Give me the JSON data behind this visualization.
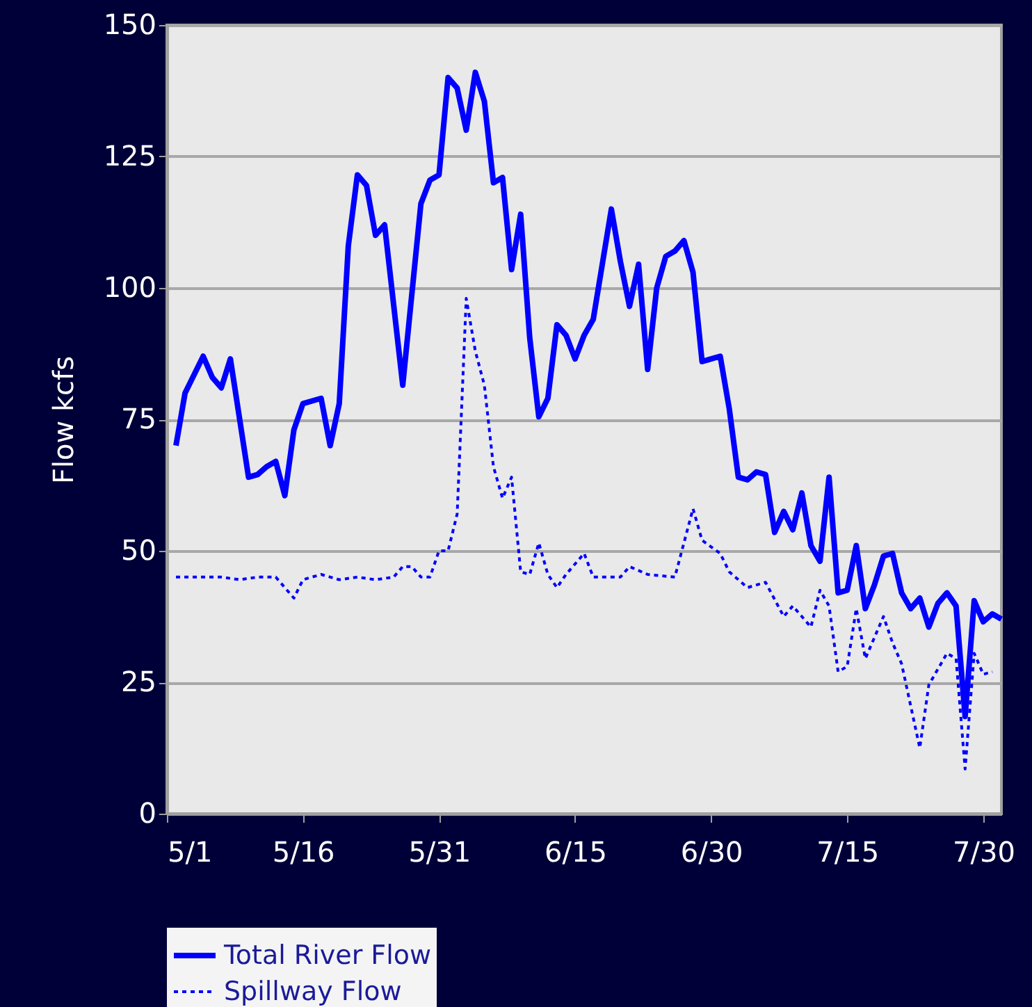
{
  "chart_data": {
    "type": "line",
    "ylabel": "Flow kcfs",
    "xlim": [
      "--05-01",
      "--08-01"
    ],
    "ylim": [
      0,
      150
    ],
    "yticks": [
      0,
      25,
      50,
      75,
      100,
      125,
      150
    ],
    "xticks": [
      {
        "value": "--05-01",
        "label": "5/1"
      },
      {
        "value": "--05-16",
        "label": "5/16"
      },
      {
        "value": "--05-31",
        "label": "5/31"
      },
      {
        "value": "--06-15",
        "label": "6/15"
      },
      {
        "value": "--06-30",
        "label": "6/30"
      },
      {
        "value": "--07-15",
        "label": "7/15"
      },
      {
        "value": "--07-30",
        "label": "7/30"
      }
    ],
    "grid": "y",
    "legend": "bottom",
    "marker": "none",
    "series": [
      {
        "name": "Total River Flow",
        "color": "#0000ff",
        "line_style": "solid",
        "x": [
          "--05-02",
          "--05-03",
          "--05-05",
          "--05-06",
          "--05-07",
          "--05-08",
          "--05-10",
          "--05-11",
          "--05-12",
          "--05-13",
          "--05-14",
          "--05-15",
          "--05-16",
          "--05-18",
          "--05-19",
          "--05-20",
          "--05-21",
          "--05-22",
          "--05-23",
          "--05-24",
          "--05-25",
          "--05-27",
          "--05-29",
          "--05-30",
          "--05-31",
          "--06-01",
          "--06-02",
          "--06-03",
          "--06-04",
          "--06-05",
          "--06-06",
          "--06-07",
          "--06-08",
          "--06-09",
          "--06-10",
          "--06-11",
          "--06-12",
          "--06-13",
          "--06-14",
          "--06-15",
          "--06-16",
          "--06-17",
          "--06-19",
          "--06-20",
          "--06-21",
          "--06-22",
          "--06-23",
          "--06-24",
          "--06-25",
          "--06-26",
          "--06-27",
          "--06-28",
          "--06-29",
          "--07-01",
          "--07-02",
          "--07-03",
          "--07-04",
          "--07-05",
          "--07-06",
          "--07-07",
          "--07-08",
          "--07-09",
          "--07-10",
          "--07-11",
          "--07-12",
          "--07-13",
          "--07-14",
          "--07-15",
          "--07-16",
          "--07-17",
          "--07-18",
          "--07-19",
          "--07-20",
          "--07-21",
          "--07-22",
          "--07-23",
          "--07-24",
          "--07-25",
          "--07-26",
          "--07-27",
          "--07-28",
          "--07-29",
          "--07-30",
          "--07-31",
          "--08-01"
        ],
        "values": [
          70,
          80,
          87,
          83,
          81,
          86.5,
          64,
          64.5,
          66,
          67,
          60.5,
          73,
          78,
          79,
          70,
          78,
          108,
          121.5,
          119.5,
          110,
          112,
          81.5,
          116,
          120.5,
          121.5,
          140,
          138,
          130,
          141,
          135.5,
          120,
          121,
          103.5,
          114,
          90.5,
          75.5,
          79,
          93,
          91,
          86.5,
          91,
          94,
          115,
          105,
          96.5,
          104.5,
          84.5,
          100,
          106,
          107,
          109,
          103,
          86,
          87,
          77,
          64,
          63.5,
          65,
          64.5,
          53.5,
          57.5,
          54,
          61,
          51,
          48,
          64,
          42,
          42.5,
          51,
          39,
          43.5,
          49,
          49.5,
          42,
          39,
          41,
          35.5,
          40,
          42,
          39.5,
          18.5,
          40.5,
          36.5,
          38,
          37
        ]
      },
      {
        "name": "Spillway Flow",
        "color": "#0000ff",
        "line_style": "dotted",
        "x": [
          "--05-02",
          "--05-03",
          "--05-05",
          "--05-07",
          "--05-09",
          "--05-11",
          "--05-13",
          "--05-14",
          "--05-15",
          "--05-16",
          "--05-18",
          "--05-20",
          "--05-22",
          "--05-24",
          "--05-26",
          "--05-27",
          "--05-28",
          "--05-29",
          "--05-30",
          "--05-31",
          "--06-01",
          "--06-02",
          "--06-03",
          "--06-04",
          "--06-05",
          "--06-06",
          "--06-07",
          "--06-08",
          "--06-09",
          "--06-10",
          "--06-11",
          "--06-12",
          "--06-13",
          "--06-14",
          "--06-16",
          "--06-17",
          "--06-20",
          "--06-21",
          "--06-23",
          "--06-26",
          "--06-27",
          "--06-28",
          "--06-29",
          "--07-01",
          "--07-02",
          "--07-04",
          "--07-06",
          "--07-08",
          "--07-09",
          "--07-11",
          "--07-12",
          "--07-13",
          "--07-14",
          "--07-15",
          "--07-16",
          "--07-17",
          "--07-19",
          "--07-20",
          "--07-21",
          "--07-23",
          "--07-24",
          "--07-26",
          "--07-27",
          "--07-28",
          "--07-29",
          "--07-30",
          "--07-31"
        ],
        "values": [
          45,
          45,
          45,
          45,
          44.5,
          45,
          45,
          43,
          41,
          44.5,
          45.5,
          44.5,
          45,
          44.5,
          45,
          47,
          47,
          45,
          45,
          50,
          50,
          57,
          98,
          88,
          81.5,
          66,
          60,
          64,
          46,
          45.5,
          51.5,
          45.5,
          43,
          45.5,
          49.5,
          45,
          45,
          47,
          45.5,
          45,
          51.5,
          58,
          52,
          49.5,
          46,
          43,
          44,
          37.5,
          39.5,
          35.5,
          42.5,
          39.5,
          27,
          28,
          39,
          29.5,
          37.5,
          32.5,
          28.5,
          12.5,
          24.5,
          30.5,
          29.5,
          8.5,
          30.5,
          26.5,
          27
        ]
      }
    ]
  }
}
